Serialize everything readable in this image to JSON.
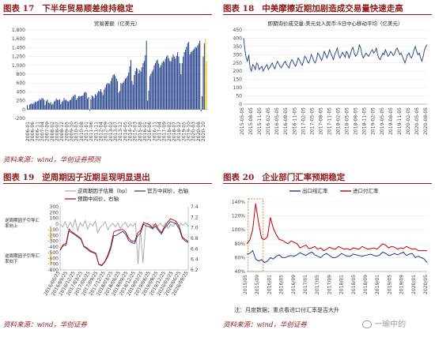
{
  "figures": {
    "f17": {
      "title_num": "图表 17",
      "title_text": "下半年贸易顺差维持稳定",
      "source": "资料来源：wind，华创证券预测"
    },
    "f18": {
      "title_num": "图表 18",
      "title_text": "中美摩擦近期加剧造成交易量快速走高",
      "source": ""
    },
    "f19": {
      "title_num": "图表 19",
      "title_text": "逆周期因子近期呈现明显退出",
      "source": "资料来源：wind，华创证券"
    },
    "f20": {
      "title_num": "图表 20",
      "title_text": "企业部门汇率预期稳定",
      "source": "资料来源：wind，华创证券",
      "note": "注：月度数据；重点看进口付汇率是否大升"
    }
  },
  "top_source_right": "",
  "annotations": {
    "up": "逆周期因子引导汇\n率向上",
    "down": "逆周期因子引导汇\n率向下"
  },
  "watermark": "一瑜中的",
  "chart_data": [
    {
      "id": "trade-balance",
      "type": "bar",
      "title": "贸易差额（亿美元）",
      "ylim": [
        -200,
        1800
      ],
      "yticks": [
        -200,
        0,
        200,
        400,
        600,
        800,
        1000,
        1200,
        1400,
        1600,
        1800
      ],
      "ytick_labels": [
        "-200",
        "0",
        "200",
        "400",
        "600",
        "800",
        "1,000",
        "1,200",
        "1,400",
        "1,600",
        "1,800"
      ],
      "xtick_labels": [
        "2006-01",
        "2006-06",
        "2006-11",
        "2007-04",
        "2007-09",
        "2008-02",
        "2008-07",
        "2008-12",
        "2009-05",
        "2009-10",
        "2010-03",
        "2010-08",
        "2011-01",
        "2011-06",
        "2011-11",
        "2012-04",
        "2012-09",
        "2013-02",
        "2013-07",
        "2013-12",
        "2014-05",
        "2014-10",
        "2015-03",
        "2015-08",
        "2016-01",
        "2016-06",
        "2016-11",
        "2017-04",
        "2017-09",
        "2018-02",
        "2018-07",
        "2018-12",
        "2019-05",
        "2019-10",
        "2020-03",
        "2020-08",
        "2020-10"
      ],
      "values": [
        100,
        20,
        110,
        130,
        140,
        120,
        150,
        180,
        170,
        190,
        200,
        240,
        220,
        260,
        250,
        220,
        100,
        190,
        230,
        160,
        140,
        170,
        110,
        130,
        180,
        200,
        250,
        220,
        220,
        230,
        120,
        170,
        200,
        260,
        210,
        230,
        190,
        180,
        210,
        220,
        270,
        300,
        320,
        340,
        220,
        260,
        300,
        310,
        300,
        310,
        320,
        380,
        400,
        380,
        250,
        280,
        -30,
        230,
        320,
        300,
        260,
        350,
        320,
        380,
        420,
        410,
        460,
        390,
        330,
        450,
        500,
        570,
        600,
        590,
        580,
        650,
        720,
        780,
        800,
        760,
        700,
        640,
        380,
        420,
        600,
        580,
        610,
        650,
        700,
        720,
        760,
        840,
        980,
        1120,
        650,
        560,
        780,
        870,
        940,
        920,
        820,
        900,
        860,
        960,
        1050,
        1100,
        1230,
        1560,
        200,
        430,
        760,
        810,
        860,
        900,
        1000,
        1050,
        1100,
        1130,
        1040,
        950,
        1000,
        1060,
        1100,
        1080,
        1150,
        1200,
        1230,
        1160,
        1100,
        1090,
        1180,
        1250,
        1200,
        1150,
        1220,
        1300,
        1200,
        1050,
        800,
        1050,
        1200,
        1300,
        1350,
        1420,
        1500,
        1530,
        1250,
        1300,
        1320,
        1350,
        1380,
        1420,
        1400,
        1450,
        1500,
        1560,
        -40,
        300,
        1200,
        1500,
        1600,
        1100
      ],
      "forecast_start_index": 160,
      "colors": {
        "actual": "#1f3c88",
        "forecast": "#f6c20a"
      }
    },
    {
      "id": "usdcny-volume",
      "type": "line",
      "title": "即期询价成交量:美元兑人民币:5日中心移动平均（亿美元）",
      "ylim": [
        0,
        450
      ],
      "yticks": [
        0,
        50,
        100,
        150,
        200,
        250,
        300,
        350,
        400,
        450
      ],
      "xtick_labels": [
        "2015-05-05",
        "2015-08-05",
        "2015-11-05",
        "2016-02-05",
        "2016-05-05",
        "2016-08-05",
        "2016-11-05",
        "2017-02-05",
        "2017-05-05",
        "2017-08-05",
        "2017-11-05",
        "2018-02-05",
        "2018-05-05",
        "2018-08-05",
        "2018-11-05",
        "2019-02-05",
        "2019-05-05",
        "2019-08-05",
        "2019-11-05",
        "2020-02-05",
        "2020-05-05",
        "2020-08-05"
      ],
      "values": [
        400,
        330,
        280,
        260,
        300,
        220,
        200,
        240,
        230,
        210,
        250,
        240,
        210,
        220,
        230,
        200,
        215,
        230,
        240,
        210,
        220,
        235,
        250,
        230,
        215,
        240,
        260,
        245,
        230,
        220,
        235,
        250,
        260,
        240,
        230,
        220,
        250,
        270,
        260,
        240,
        230,
        255,
        280,
        265,
        250,
        235,
        260,
        290,
        280,
        260,
        250,
        270,
        300,
        285,
        260,
        250,
        270,
        310,
        300,
        280,
        265,
        290,
        320,
        300,
        280,
        300,
        330,
        310,
        290,
        270,
        300,
        320,
        340,
        300,
        280,
        295,
        315,
        300,
        285,
        320,
        310,
        280,
        300,
        330,
        345,
        310,
        290,
        300,
        320,
        360,
        340,
        300,
        280,
        295,
        310,
        300,
        290,
        305,
        320,
        330,
        310,
        320,
        340,
        300,
        280,
        270,
        290,
        310,
        300,
        330,
        310,
        290,
        300,
        320,
        310,
        295,
        305,
        330,
        340,
        320,
        300,
        310,
        290,
        270,
        250,
        275,
        300,
        310,
        290,
        280,
        300,
        330,
        350,
        320,
        300,
        310,
        280,
        260,
        290,
        330,
        350,
        360
      ],
      "color": "#1f3c88"
    },
    {
      "id": "ccf-midpoint",
      "type": "line",
      "legend": [
        "逆周期因子估算（bp）",
        "官方中间价，右轴",
        "预期中间价，右轴"
      ],
      "yleft_lim": [
        -800,
        300
      ],
      "yleft_ticks": [
        -800,
        -700,
        -600,
        -500,
        -400,
        -300,
        -200,
        -100,
        0,
        100,
        200,
        300
      ],
      "yright_lim": [
        6.2,
        7.4
      ],
      "yright_ticks": [
        6.2,
        6.4,
        6.6,
        6.8,
        7.0,
        7.2,
        7.4
      ],
      "xtick_labels": [
        "2016/06/25",
        "2016/09/25",
        "2016/12/25",
        "2017/03/25",
        "2017/06/25",
        "2017/09/25",
        "2017/12/25",
        "2018/03/25",
        "2018/06/25",
        "2018/09/25",
        "2018/12/25",
        "2019/03/25",
        "2019/06/25",
        "2019/09/25",
        "2019/12/25",
        "2020/03/25",
        "2020/06/25",
        "2020/09/25"
      ],
      "factor_bp": [
        0,
        -50,
        40,
        -80,
        30,
        -60,
        80,
        -120,
        20,
        -40,
        60,
        -90,
        10,
        -30,
        50,
        -150,
        -60,
        -20,
        40,
        -100,
        -30,
        10,
        -50,
        20,
        -80,
        -10,
        30,
        -60,
        0,
        -40,
        20,
        -700,
        -100,
        -680,
        -40,
        20,
        -60,
        0,
        -40,
        -30,
        10,
        -50,
        20,
        -80,
        0,
        -40,
        30,
        -60,
        10,
        -20,
        20,
        -40
      ],
      "official": [
        6.57,
        6.66,
        6.67,
        6.94,
        6.9,
        6.87,
        6.82,
        6.78,
        6.64,
        6.6,
        6.55,
        6.53,
        6.5,
        6.3,
        6.28,
        6.35,
        6.45,
        6.6,
        6.85,
        6.86,
        6.9,
        6.93,
        6.88,
        6.76,
        6.72,
        6.7,
        6.85,
        6.9,
        7.07,
        7.03,
        7.02,
        6.98,
        7.03,
        6.95,
        6.88,
        6.99,
        7.05,
        7.12,
        7.1,
        7.07,
        6.98,
        6.8,
        6.75,
        6.72
      ],
      "expected": [
        6.58,
        6.68,
        6.7,
        6.98,
        6.92,
        6.88,
        6.84,
        6.8,
        6.65,
        6.62,
        6.57,
        6.54,
        6.52,
        6.31,
        6.29,
        6.36,
        6.48,
        6.65,
        6.92,
        6.95,
        6.96,
        6.97,
        6.92,
        6.8,
        6.75,
        6.74,
        6.9,
        6.95,
        7.1,
        7.08,
        7.06,
        7.0,
        7.08,
        6.98,
        6.91,
        7.02,
        7.1,
        7.17,
        7.15,
        7.12,
        7.02,
        6.83,
        6.78,
        6.74
      ],
      "colors": {
        "factor": "#a6a6a6",
        "official": "#1f3c88",
        "expected": "#c00000"
      }
    },
    {
      "id": "fx-settlement",
      "type": "line",
      "legend": [
        "出口结汇率",
        "进口付汇率"
      ],
      "ylim": [
        0.4,
        1.4
      ],
      "yticks": [
        0.4,
        0.6,
        0.8,
        1.0,
        1.2,
        1.4
      ],
      "ytick_labels": [
        "40%",
        "60%",
        "80%",
        "100%",
        "120%",
        "140%"
      ],
      "xtick_labels": [
        "2015/05",
        "2015/09",
        "2016/01",
        "2016/05",
        "2016/09",
        "2017/01",
        "2017/05",
        "2017/09",
        "2018/01",
        "2018/05",
        "2018/09",
        "2019/01",
        "2019/05",
        "2019/09",
        "2020/01",
        "2020/05"
      ],
      "export_rate": [
        0.65,
        0.66,
        0.7,
        0.58,
        0.55,
        0.57,
        0.53,
        0.55,
        0.6,
        0.58,
        0.62,
        0.64,
        0.6,
        0.6,
        0.62,
        0.63,
        0.62,
        0.64,
        0.67,
        0.65,
        0.63,
        0.66,
        0.68,
        0.64,
        0.62,
        0.6,
        0.64,
        0.66,
        0.63,
        0.6,
        0.6,
        0.62,
        0.66,
        0.64,
        0.62,
        0.62,
        0.65,
        0.64,
        0.63,
        0.62,
        0.63,
        0.64,
        0.65,
        0.63,
        0.62,
        0.64,
        0.68,
        0.66,
        0.63,
        0.64,
        0.66,
        0.64,
        0.66,
        0.68,
        0.63,
        0.65,
        0.66,
        0.6,
        0.62,
        0.6,
        0.58,
        0.53
      ],
      "import_rate": [
        0.8,
        0.85,
        1.0,
        1.38,
        1.1,
        0.88,
        0.86,
        0.9,
        1.18,
        1.02,
        0.93,
        0.86,
        0.85,
        0.82,
        0.8,
        0.84,
        0.82,
        0.8,
        0.74,
        0.76,
        0.78,
        0.73,
        0.74,
        0.76,
        0.72,
        0.74,
        0.7,
        0.72,
        0.75,
        0.73,
        0.72,
        0.76,
        0.74,
        0.72,
        0.73,
        0.71,
        0.74,
        0.73,
        0.72,
        0.76,
        0.74,
        0.72,
        0.73,
        0.74,
        0.72,
        0.76,
        0.8,
        0.78,
        0.74,
        0.76,
        0.75,
        0.72,
        0.74,
        0.73,
        0.76,
        0.74,
        0.72,
        0.73,
        0.7,
        0.7,
        0.7,
        0.7
      ],
      "highlight_range": [
        1,
        5
      ],
      "colors": {
        "export": "#1f3c88",
        "import": "#c00000",
        "highlight": "#e07b39"
      }
    }
  ]
}
